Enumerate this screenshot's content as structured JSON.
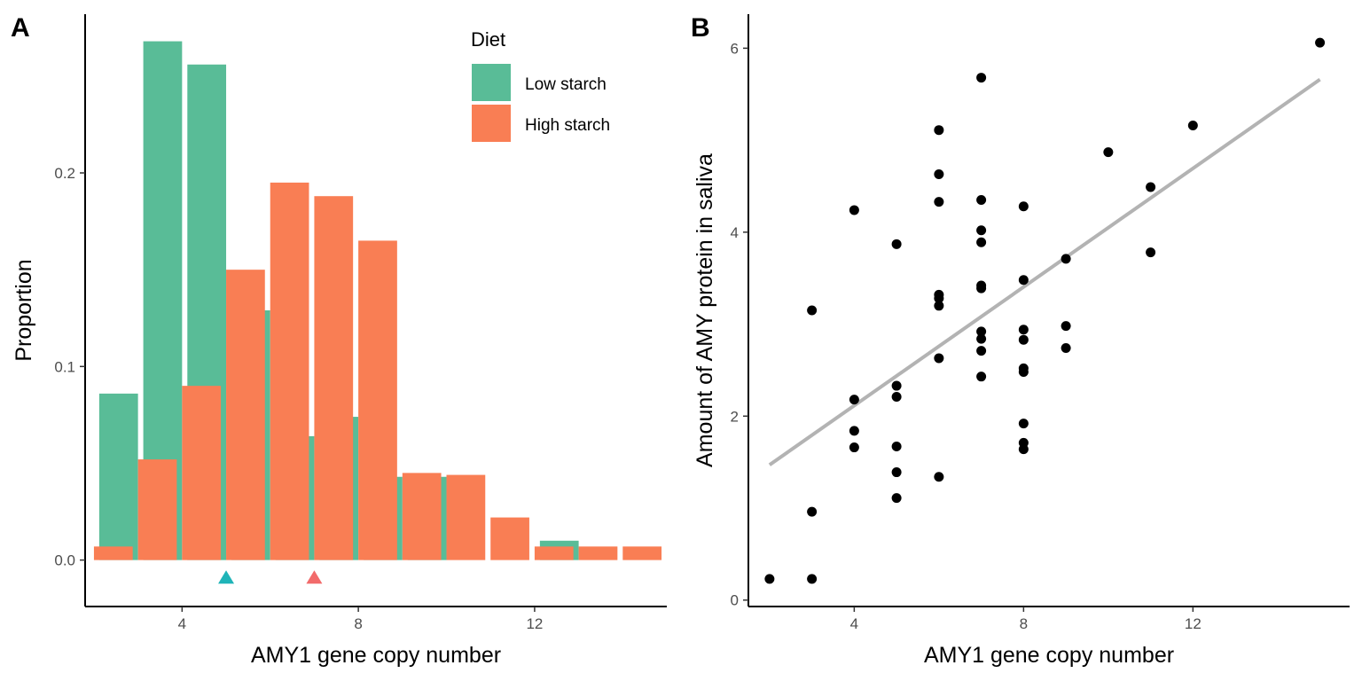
{
  "chart_data": [
    {
      "type": "bar",
      "panel_label": "A",
      "xlabel": "AMY1 gene copy number",
      "ylabel": "Proportion",
      "xlim": [
        1.8,
        15.0
      ],
      "ylim": [
        -0.024,
        0.282
      ],
      "x_ticks": [
        4,
        8,
        12
      ],
      "y_ticks": [
        0.0,
        0.1,
        0.2
      ],
      "y_tick_labels": [
        "0.0",
        "0.1",
        "0.2"
      ],
      "grid": false,
      "legend": {
        "title": "Diet",
        "position": "top-right",
        "entries": [
          "Low starch",
          "High starch"
        ]
      },
      "series": [
        {
          "name": "Low starch",
          "color": "#59BC97",
          "points": [
            {
              "x": 3,
              "y": 0.086
            },
            {
              "x": 4,
              "y": 0.268
            },
            {
              "x": 5,
              "y": 0.256
            },
            {
              "x": 6,
              "y": 0.129
            },
            {
              "x": 7,
              "y": 0.064
            },
            {
              "x": 8,
              "y": 0.074
            },
            {
              "x": 9,
              "y": 0.043
            },
            {
              "x": 10,
              "y": 0.043
            },
            {
              "x": 13,
              "y": 0.01
            }
          ]
        },
        {
          "name": "High starch",
          "color": "#F97E54",
          "points": [
            {
              "x": 2,
              "y": 0.007
            },
            {
              "x": 3,
              "y": 0.052
            },
            {
              "x": 4,
              "y": 0.09
            },
            {
              "x": 5,
              "y": 0.15
            },
            {
              "x": 6,
              "y": 0.195
            },
            {
              "x": 7,
              "y": 0.188
            },
            {
              "x": 8,
              "y": 0.165
            },
            {
              "x": 9,
              "y": 0.045
            },
            {
              "x": 10,
              "y": 0.044
            },
            {
              "x": 11,
              "y": 0.022
            },
            {
              "x": 12,
              "y": 0.007
            },
            {
              "x": 13,
              "y": 0.007
            },
            {
              "x": 14,
              "y": 0.007
            }
          ]
        }
      ],
      "markers": [
        {
          "group": "Low starch",
          "x": 5,
          "y": -0.009,
          "shape": "triangle",
          "color": "#1FB4B8"
        },
        {
          "group": "High starch",
          "x": 7,
          "y": -0.009,
          "shape": "triangle",
          "color": "#F26B6B"
        }
      ]
    },
    {
      "type": "scatter",
      "panel_label": "B",
      "xlabel": "AMY1 gene copy number",
      "ylabel": "Amount of AMY protein in saliva",
      "xlim": [
        1.5,
        15.7
      ],
      "ylim": [
        -0.07,
        6.37
      ],
      "x_ticks": [
        4,
        8,
        12
      ],
      "y_ticks": [
        0,
        2,
        4,
        6
      ],
      "grid": false,
      "point_color": "#000000",
      "fit_line": {
        "color": "#B3B3B3",
        "x": [
          2,
          15
        ],
        "y": [
          1.47,
          5.66
        ]
      },
      "points": [
        {
          "x": 2,
          "y": 0.23
        },
        {
          "x": 3,
          "y": 3.15
        },
        {
          "x": 3,
          "y": 0.96
        },
        {
          "x": 3,
          "y": 0.23
        },
        {
          "x": 4,
          "y": 4.24
        },
        {
          "x": 4,
          "y": 2.18
        },
        {
          "x": 4,
          "y": 1.84
        },
        {
          "x": 4,
          "y": 1.66
        },
        {
          "x": 5,
          "y": 3.87
        },
        {
          "x": 5,
          "y": 2.33
        },
        {
          "x": 5,
          "y": 2.21
        },
        {
          "x": 5,
          "y": 1.67
        },
        {
          "x": 5,
          "y": 1.39
        },
        {
          "x": 5,
          "y": 1.11
        },
        {
          "x": 6,
          "y": 5.11
        },
        {
          "x": 6,
          "y": 4.63
        },
        {
          "x": 6,
          "y": 4.33
        },
        {
          "x": 6,
          "y": 3.32
        },
        {
          "x": 6,
          "y": 3.28
        },
        {
          "x": 6,
          "y": 3.2
        },
        {
          "x": 6,
          "y": 2.63
        },
        {
          "x": 6,
          "y": 1.34
        },
        {
          "x": 7,
          "y": 5.68
        },
        {
          "x": 7,
          "y": 4.35
        },
        {
          "x": 7,
          "y": 4.02
        },
        {
          "x": 7,
          "y": 3.89
        },
        {
          "x": 7,
          "y": 3.42
        },
        {
          "x": 7,
          "y": 3.39
        },
        {
          "x": 7,
          "y": 2.92
        },
        {
          "x": 7,
          "y": 2.84
        },
        {
          "x": 7,
          "y": 2.71
        },
        {
          "x": 7,
          "y": 2.43
        },
        {
          "x": 8,
          "y": 4.28
        },
        {
          "x": 8,
          "y": 3.48
        },
        {
          "x": 8,
          "y": 2.94
        },
        {
          "x": 8,
          "y": 2.83
        },
        {
          "x": 8,
          "y": 2.52
        },
        {
          "x": 8,
          "y": 2.48
        },
        {
          "x": 8,
          "y": 1.92
        },
        {
          "x": 8,
          "y": 1.71
        },
        {
          "x": 8,
          "y": 1.64
        },
        {
          "x": 9,
          "y": 3.71
        },
        {
          "x": 9,
          "y": 2.98
        },
        {
          "x": 9,
          "y": 2.74
        },
        {
          "x": 10,
          "y": 4.87
        },
        {
          "x": 11,
          "y": 4.49
        },
        {
          "x": 11,
          "y": 3.78
        },
        {
          "x": 12,
          "y": 5.16
        },
        {
          "x": 15,
          "y": 6.06
        }
      ]
    }
  ]
}
